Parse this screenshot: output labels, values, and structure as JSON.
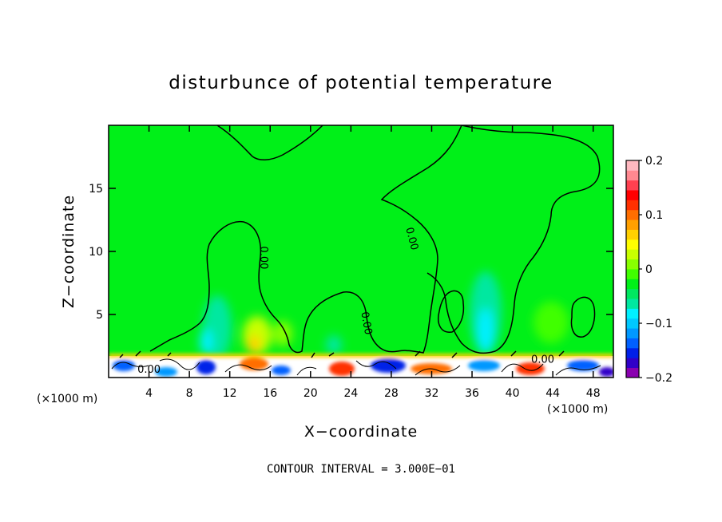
{
  "chart_data": {
    "type": "heatmap",
    "title": "disturbunce of potential temperature",
    "xlabel": "X−coordinate",
    "ylabel": "Z−coordinate",
    "x_unit_left": "(×1000 m)",
    "x_unit_right": "(×1000 m)",
    "xlim": [
      0,
      50
    ],
    "ylim": [
      0,
      20
    ],
    "x_ticks": [
      4,
      8,
      12,
      16,
      20,
      24,
      28,
      32,
      36,
      40,
      44,
      48
    ],
    "y_ticks": [
      5,
      10,
      15
    ],
    "contour_interval_text": "CONTOUR INTERVAL = 3.000E−01",
    "contour_labels": [
      {
        "text": "0.00",
        "x": 15.3,
        "y": 9.5,
        "rotate": 90
      },
      {
        "text": "0.00",
        "x": 30.0,
        "y": 11.0,
        "rotate": 75
      },
      {
        "text": "0.00",
        "x": 25.5,
        "y": 4.3,
        "rotate": 80
      },
      {
        "text": "0.00",
        "x": 4.0,
        "y": 0.6,
        "rotate": 0
      },
      {
        "text": "0.00",
        "x": 43.0,
        "y": 1.4,
        "rotate": 0
      }
    ],
    "colorbar": {
      "min": -0.2,
      "max": 0.2,
      "tick_values": [
        0.2,
        0.1,
        0,
        -0.1,
        -0.2
      ],
      "tick_labels": [
        "0.2",
        "0.1",
        "0",
        "−0.1",
        "−0.2"
      ],
      "colors": [
        "#8a00b0",
        "#3000c8",
        "#0020e8",
        "#0060ff",
        "#0098ff",
        "#00c8ff",
        "#00f0ff",
        "#00e8a0",
        "#00e860",
        "#00f018",
        "#40ff00",
        "#88ff00",
        "#c8ff00",
        "#ffff00",
        "#ffd000",
        "#ffa000",
        "#ff6e00",
        "#ff3000",
        "#ff0000",
        "#ff4050",
        "#ff8890",
        "#ffb8c0"
      ]
    },
    "background_color": "#00f018"
  }
}
